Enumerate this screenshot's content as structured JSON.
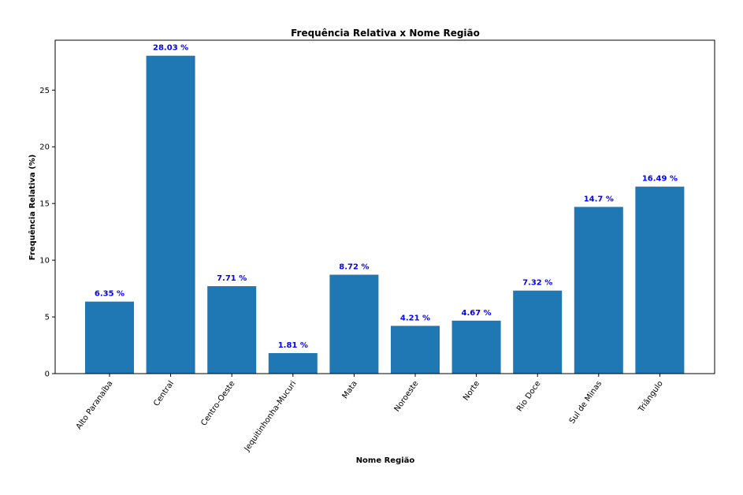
{
  "chart_data": {
    "type": "bar",
    "title": "Frequência Relativa x Nome Região",
    "xlabel": "Nome Região",
    "ylabel": "Frequência Relativa (%)",
    "categories": [
      "Alto Paranaíba",
      "Central",
      "Centro-Oeste",
      "Jequitinhonha-Mucuri",
      "Mata",
      "Noroeste",
      "Norte",
      "Rio Doce",
      "Sul de Minas",
      "Triângulo"
    ],
    "values": [
      6.35,
      28.03,
      7.71,
      1.81,
      8.72,
      4.21,
      4.67,
      7.32,
      14.7,
      16.49
    ],
    "value_labels": [
      "6.35 %",
      "28.03 %",
      "7.71 %",
      "1.81 %",
      "8.72 %",
      "4.21 %",
      "4.67 %",
      "7.32 %",
      "14.7 %",
      "16.49 %"
    ],
    "yticks": [
      0,
      5,
      10,
      15,
      20,
      25
    ],
    "ylim": [
      0,
      29.4
    ],
    "grid": false,
    "bar_color": "#1f77b4",
    "label_color": "#0000ff",
    "x_tick_rotation_deg": 55
  }
}
